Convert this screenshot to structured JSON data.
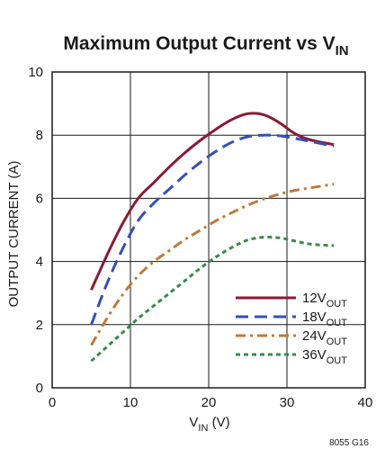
{
  "chart_data": {
    "type": "line",
    "title_main": "Maximum Output Current vs V",
    "title_sub": "IN",
    "xlabel_main": "V",
    "xlabel_sub": "IN",
    "xlabel_unit": " (V)",
    "ylabel": "OUTPUT CURRENT (A)",
    "xlim": [
      0,
      40
    ],
    "ylim": [
      0,
      10
    ],
    "xticks": [
      "0",
      "10",
      "20",
      "30",
      "40"
    ],
    "yticks": [
      "0",
      "2",
      "4",
      "6",
      "8",
      "10"
    ],
    "grid": true,
    "legend_position": "bottom-right",
    "figure_id": "8055 G16",
    "series": [
      {
        "name_main": "12V",
        "name_sub": "OUT",
        "color": "#8b1a35",
        "dash": "solid",
        "x": [
          5,
          7,
          9,
          11,
          13,
          15,
          17,
          19,
          21,
          23,
          25,
          27,
          29,
          31,
          33,
          36
        ],
        "y": [
          3.1,
          4.2,
          5.2,
          6.0,
          6.5,
          7.0,
          7.45,
          7.85,
          8.2,
          8.5,
          8.68,
          8.65,
          8.4,
          8.05,
          7.85,
          7.7
        ]
      },
      {
        "name_main": "18V",
        "name_sub": "OUT",
        "color": "#3550b5",
        "dash": "long-dash",
        "x": [
          5,
          7,
          9,
          11,
          13,
          15,
          17,
          19,
          21,
          23,
          25,
          27,
          29,
          31,
          33,
          36
        ],
        "y": [
          2.0,
          3.3,
          4.4,
          5.3,
          5.85,
          6.3,
          6.75,
          7.15,
          7.5,
          7.78,
          7.95,
          8.0,
          7.98,
          7.9,
          7.8,
          7.65
        ]
      },
      {
        "name_main": "24V",
        "name_sub": "OUT",
        "color": "#c07a3a",
        "dash": "dash-dot",
        "x": [
          5,
          7,
          9,
          11,
          13,
          15,
          17,
          19,
          21,
          23,
          25,
          27,
          29,
          31,
          33,
          36
        ],
        "y": [
          1.35,
          2.2,
          2.95,
          3.55,
          4.0,
          4.35,
          4.7,
          5.0,
          5.3,
          5.55,
          5.78,
          5.98,
          6.13,
          6.25,
          6.33,
          6.45
        ]
      },
      {
        "name_main": "36V",
        "name_sub": "OUT",
        "color": "#3a8a4a",
        "dash": "short-dash",
        "x": [
          5,
          7,
          9,
          11,
          13,
          15,
          17,
          19,
          21,
          23,
          25,
          27,
          29,
          31,
          33,
          36
        ],
        "y": [
          0.85,
          1.3,
          1.75,
          2.2,
          2.6,
          3.0,
          3.4,
          3.8,
          4.15,
          4.45,
          4.68,
          4.77,
          4.75,
          4.65,
          4.55,
          4.5
        ]
      }
    ]
  }
}
